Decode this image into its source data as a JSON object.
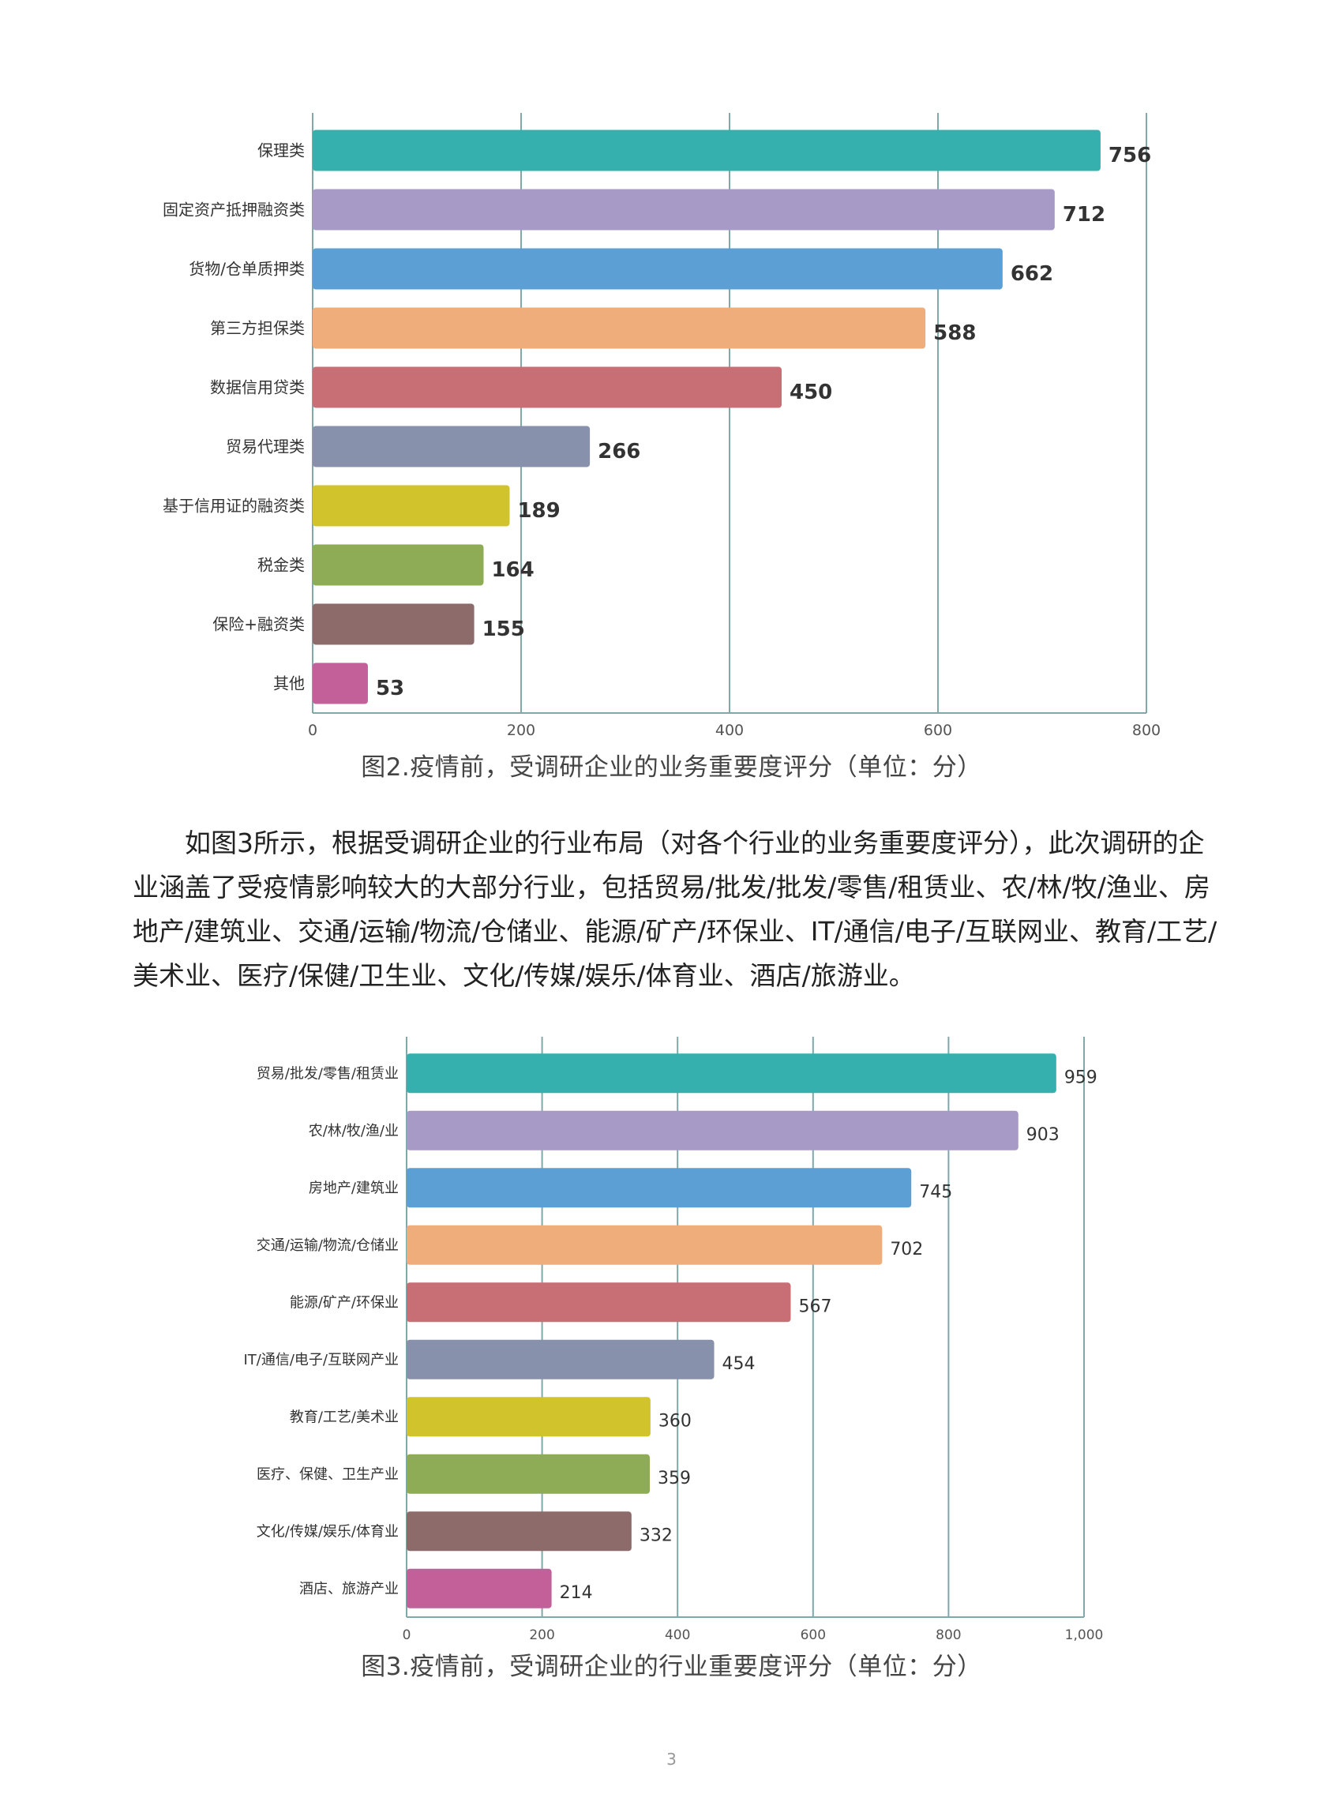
{
  "chart_data": [
    {
      "type": "bar",
      "orientation": "horizontal",
      "categories": [
        "保理类",
        "固定资产抵押融资类",
        "货物/仓单质押类",
        "第三方担保类",
        "数据信用贷类",
        "贸易代理类",
        "基于信用证的融资类",
        "税金类",
        "保险+融资类",
        "其他"
      ],
      "values": [
        756,
        712,
        662,
        588,
        450,
        266,
        189,
        164,
        155,
        53
      ],
      "colors": [
        "#36b0ae",
        "#a89ac6",
        "#5b9fd4",
        "#efad7c",
        "#c86f76",
        "#8891ab",
        "#d0c32c",
        "#8eab55",
        "#8d6b6a",
        "#c35f99"
      ],
      "xlim": [
        0,
        800
      ],
      "xticks": [
        "0",
        "200",
        "400",
        "600",
        "800"
      ],
      "grid": true
    },
    {
      "type": "bar",
      "orientation": "horizontal",
      "categories": [
        "贸易/批发/零售/租赁业",
        "农/林/牧/渔/业",
        "房地产/建筑业",
        "交通/运输/物流/仓储业",
        "能源/矿产/环保业",
        "IT/通信/电子/互联网产业",
        "教育/工艺/美术业",
        "医疗、保健、卫生产业",
        "文化/传媒/娱乐/体育业",
        "酒店、旅游产业"
      ],
      "values": [
        959,
        903,
        745,
        702,
        567,
        454,
        360,
        359,
        332,
        214
      ],
      "colors": [
        "#36b0ae",
        "#a89ac6",
        "#5b9fd4",
        "#efad7c",
        "#c86f76",
        "#8891ab",
        "#d0c32c",
        "#8eab55",
        "#8d6b6a",
        "#c35f99"
      ],
      "xlim": [
        0,
        1000
      ],
      "xticks": [
        "0",
        "200",
        "400",
        "600",
        "800",
        "1,000"
      ],
      "grid": true
    }
  ],
  "captions": {
    "fig2": "图2.疫情前，受调研企业的业务重要度评分（单位：分）",
    "fig3": "图3.疫情前，受调研企业的行业重要度评分（单位：分）"
  },
  "paragraph": {
    "text": "如图3所示，根据受调研企业的行业布局（对各个行业的业务重要度评分），此次调研的企业涵盖了受疫情影响较大的大部分行业，包括贸易/批发/批发/零售/租赁业、农/林/牧/渔业、房地产/建筑业、交通/运输/物流/仓储业、能源/矿产/环保业、IT/通信/电子/互联网业、教育/工艺/美术业、医疗/保健/卫生业、文化/传媒/娱乐/体育业、酒店/旅游业。"
  },
  "page_number": "3"
}
